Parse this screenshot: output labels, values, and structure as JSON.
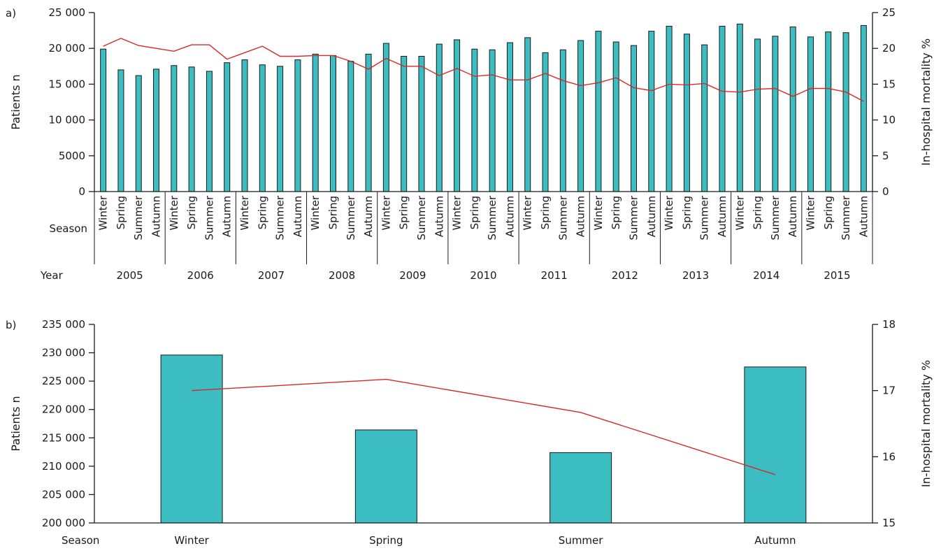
{
  "colors": {
    "bar_fill": "#3bbdc1",
    "bar_stroke": "#1a1a1a",
    "line": "#d42a26",
    "axis": "#1a1a1a"
  },
  "chart_data": [
    {
      "panel_label": "a)",
      "type": "bar",
      "secondary_type": "line",
      "ylabel": "Patients n",
      "y2label": "In-hospital mortality %",
      "ylim": [
        0,
        25000
      ],
      "y2lim": [
        0,
        25
      ],
      "yticks": [
        0,
        5000,
        10000,
        15000,
        20000,
        25000
      ],
      "yticks_labels": [
        "0",
        "5000",
        "10 000",
        "15 000",
        "20 000",
        "25 000"
      ],
      "y2ticks": [
        0,
        5,
        10,
        15,
        20,
        25
      ],
      "row_labels": {
        "season": "Season",
        "year": "Year"
      },
      "seasons": [
        "Winter",
        "Spring",
        "Summer",
        "Autumn"
      ],
      "years": [
        "2005",
        "2006",
        "2007",
        "2008",
        "2009",
        "2010",
        "2011",
        "2012",
        "2013",
        "2014",
        "2015"
      ],
      "series": [
        {
          "kind": "bar",
          "axis": "left",
          "values": [
            19900,
            17000,
            16200,
            17100,
            17600,
            17400,
            16800,
            18000,
            18400,
            17700,
            17500,
            18400,
            19200,
            19000,
            18200,
            19200,
            20700,
            18900,
            18900,
            20600,
            21200,
            19900,
            19800,
            20800,
            21500,
            19400,
            19800,
            21100,
            22400,
            20900,
            20400,
            22400,
            23100,
            22000,
            20500,
            23100,
            23400,
            21300,
            21700,
            23000,
            21600,
            22300,
            22200,
            23200
          ]
        },
        {
          "kind": "line",
          "axis": "right",
          "values": [
            20.3,
            21.4,
            20.4,
            20.0,
            19.6,
            20.5,
            20.5,
            18.5,
            19.4,
            20.3,
            18.9,
            18.9,
            19.0,
            19.0,
            18.2,
            17.1,
            18.6,
            17.5,
            17.5,
            16.2,
            17.2,
            16.1,
            16.3,
            15.6,
            15.6,
            16.5,
            15.5,
            14.8,
            15.2,
            15.9,
            14.5,
            14.1,
            15.0,
            14.9,
            15.1,
            14.0,
            13.9,
            14.3,
            14.4,
            13.3,
            14.4,
            14.4,
            13.9,
            12.6
          ]
        }
      ]
    },
    {
      "panel_label": "b)",
      "type": "bar",
      "secondary_type": "line",
      "ylabel": "Patients n",
      "y2label": "In-hospital mortality %",
      "ylim": [
        200000,
        235000
      ],
      "y2lim": [
        15,
        18
      ],
      "yticks": [
        200000,
        205000,
        210000,
        215000,
        220000,
        225000,
        230000,
        235000
      ],
      "yticks_labels": [
        "200 000",
        "205 000",
        "210 000",
        "215 000",
        "220 000",
        "225 000",
        "230 000",
        "235 000"
      ],
      "y2ticks": [
        15,
        16,
        17,
        18
      ],
      "row_labels": {
        "season": "Season"
      },
      "categories": [
        "Winter",
        "Spring",
        "Summer",
        "Autumn"
      ],
      "series": [
        {
          "kind": "bar",
          "axis": "left",
          "values": [
            229600,
            216400,
            212400,
            227500
          ]
        },
        {
          "kind": "line",
          "axis": "right",
          "values": [
            17.0,
            17.17,
            16.67,
            15.73
          ]
        }
      ]
    }
  ]
}
